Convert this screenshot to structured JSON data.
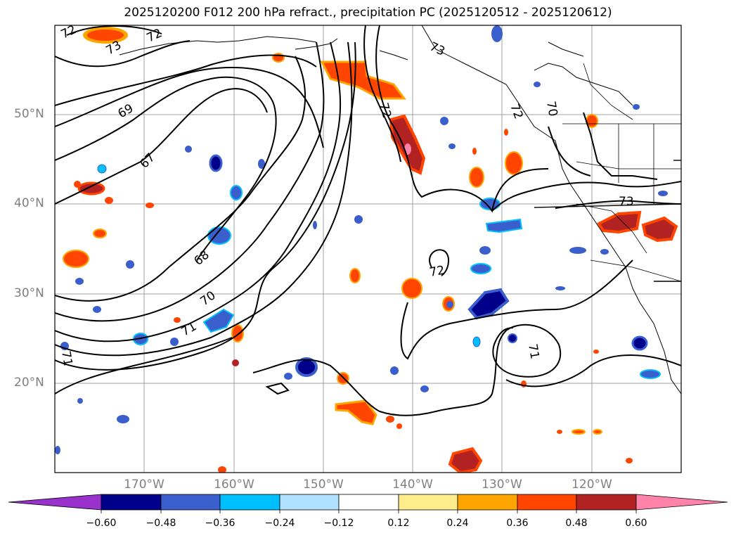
{
  "title": "2025120200 F012 200 hPa refract., precipitation PC (2025120512 - 2025120612)",
  "lat_labels": [
    "50°N",
    "40°N",
    "30°N",
    "20°N"
  ],
  "lon_labels": [
    "170°W",
    "160°W",
    "150°W",
    "140°W",
    "130°W",
    "120°W"
  ],
  "contour_labels": [
    "72",
    "73",
    "72",
    "69",
    "67",
    "68",
    "70",
    "71",
    "71",
    "72",
    "73",
    "72",
    "70",
    "73",
    "72",
    "71"
  ],
  "colorbar": {
    "ticks": [
      "−0.60",
      "−0.48",
      "−0.36",
      "−0.24",
      "−0.12",
      "0.12",
      "0.24",
      "0.36",
      "0.48",
      "0.60"
    ],
    "colors": [
      "#9932cc",
      "#00008b",
      "#3a5fcd",
      "#00bfff",
      "#b0e2ff",
      "#ffffff",
      "#ffec8b",
      "#ffa500",
      "#ff4500",
      "#b22222",
      "#ff82ab"
    ]
  },
  "colors": {
    "grid": "#a0a0a0",
    "contour": "#000000",
    "label_gray": "#808080"
  }
}
